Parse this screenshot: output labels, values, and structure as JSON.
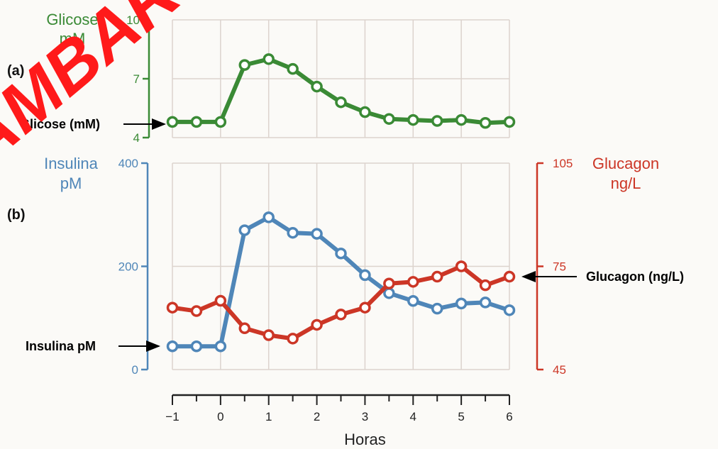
{
  "watermark": "AMBAR",
  "colors": {
    "glucose": "#3a8a35",
    "insulin": "#4f86b8",
    "glucagon": "#cc3626",
    "axis_black": "#222222",
    "watermark": "#ff1a1a"
  },
  "panel_a_label": "(a)",
  "panel_b_label": "(b)",
  "callouts": {
    "glucose": "Glicose (mM)",
    "insulin": "Insulina pM",
    "glucagon": "Glucagon (ng/L)"
  },
  "chart_data": [
    {
      "type": "line",
      "panel": "(a)",
      "x": [
        -1,
        -0.5,
        0,
        0.5,
        1,
        1.5,
        2,
        2.5,
        3,
        3.5,
        4,
        4.5,
        5,
        5.5,
        6
      ],
      "series": [
        {
          "name": "Glicose (mM)",
          "values": [
            4.8,
            4.8,
            4.8,
            7.7,
            8.0,
            7.5,
            6.6,
            5.8,
            5.3,
            4.95,
            4.9,
            4.85,
            4.9,
            4.75,
            4.8
          ]
        }
      ],
      "ylabel": [
        "Glicose",
        "mM"
      ],
      "ylim": [
        4,
        10
      ],
      "yticks": [
        4,
        7,
        10
      ],
      "xlim": [
        -1,
        6
      ],
      "grid": true
    },
    {
      "type": "line",
      "panel": "(b)",
      "x": [
        -1,
        -0.5,
        0,
        0.5,
        1,
        1.5,
        2,
        2.5,
        3,
        3.5,
        4,
        4.5,
        5,
        5.5,
        6
      ],
      "series": [
        {
          "name": "Insulina pM",
          "axis": "left",
          "values": [
            45,
            45,
            45,
            270,
            295,
            265,
            263,
            225,
            183,
            148,
            133,
            118,
            128,
            130,
            115
          ]
        },
        {
          "name": "Glucagon (ng/L)",
          "axis": "right",
          "values": [
            63,
            62,
            65,
            57,
            55,
            54,
            58,
            61,
            63,
            70,
            70.5,
            72,
            75,
            69.5,
            72
          ]
        }
      ],
      "ylabel_left": [
        "Insulina",
        "pM"
      ],
      "ylim_left": [
        0,
        400
      ],
      "yticks_left": [
        0,
        200,
        400
      ],
      "ylabel_right": [
        "Glucagon",
        "ng/L"
      ],
      "ylim_right": [
        45,
        105
      ],
      "yticks_right": [
        45,
        75,
        105
      ],
      "xlabel": "Horas",
      "xlim": [
        -1,
        6
      ],
      "xticks": [
        -1,
        0,
        1,
        2,
        3,
        4,
        5,
        6
      ],
      "xtick_labels": [
        "−1",
        "0",
        "1",
        "2",
        "3",
        "4",
        "5",
        "6"
      ],
      "grid": true
    }
  ]
}
